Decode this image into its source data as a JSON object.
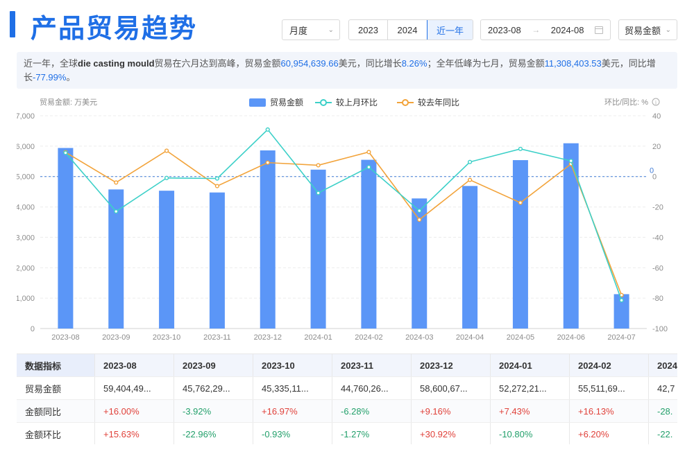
{
  "page": {
    "title": "产品贸易趋势"
  },
  "controls": {
    "period_select": "月度",
    "years": [
      "2023",
      "2024",
      "近一年"
    ],
    "active_year": "近一年",
    "range_start": "2023-08",
    "range_arrow": "→",
    "range_end": "2024-08",
    "metric_select": "贸易金额"
  },
  "summary": {
    "p1": "近一年，全球",
    "product": "die casting mould",
    "p2": "贸易在六月达到高峰，贸易金额",
    "peak_value": "60,954,639.66",
    "p3": "美元，同比增长",
    "peak_growth": "8.26%",
    "p4": "；全年低峰为七月，贸易金额",
    "low_value": "11,308,403.53",
    "p5": "美元，同比增长",
    "low_growth": "-77.99%",
    "p6": "。"
  },
  "chart_data": {
    "type": "bar",
    "categories": [
      "2023-08",
      "2023-09",
      "2023-10",
      "2023-11",
      "2023-12",
      "2024-01",
      "2024-02",
      "2024-03",
      "2024-04",
      "2024-05",
      "2024-06",
      "2024-07"
    ],
    "ylabel": "贸易金额: 万美元",
    "y2label": "环比/同比: %",
    "ylim": [
      0,
      7000
    ],
    "y2lim": [
      -100,
      40
    ],
    "yticks": [
      "0",
      "1,000",
      "2,000",
      "3,000",
      "4,000",
      "5,000",
      "6,000",
      "7,000"
    ],
    "y2ticks": [
      "-100",
      "-80",
      "-60",
      "-40",
      "-20",
      "0",
      "20",
      "40"
    ],
    "zero_label": "0",
    "legend_position": "top-center",
    "series": [
      {
        "name": "贸易金额",
        "type": "bar",
        "color": "#5b96f7",
        "values": [
          5940,
          4576,
          4534,
          4476,
          5860,
          5227,
          5551,
          4280,
          4690,
          5540,
          6095,
          1131
        ]
      },
      {
        "name": "较上月环比",
        "type": "line",
        "color": "#3cd0c8",
        "values": [
          15.63,
          -22.96,
          -0.93,
          -1.27,
          30.92,
          -10.8,
          6.2,
          -22.5,
          9.6,
          18.2,
          10.3,
          -81.4
        ]
      },
      {
        "name": "较去年同比",
        "type": "line",
        "color": "#f2a33a",
        "values": [
          16.0,
          -3.92,
          16.97,
          -6.28,
          9.16,
          7.43,
          16.13,
          -28.4,
          -2.2,
          -17.2,
          8.26,
          -77.99
        ]
      }
    ]
  },
  "table": {
    "headers": [
      "数据指标",
      "2023-08",
      "2023-09",
      "2023-10",
      "2023-11",
      "2023-12",
      "2024-01",
      "2024-02",
      "2024"
    ],
    "rows": [
      {
        "label": "贸易金额",
        "cells": [
          "59,404,49...",
          "45,762,29...",
          "45,335,11...",
          "44,760,26...",
          "58,600,67...",
          "52,272,21...",
          "55,511,69...",
          "42,7"
        ]
      },
      {
        "label": "金额同比",
        "cells": [
          "+16.00%",
          "-3.92%",
          "+16.97%",
          "-6.28%",
          "+9.16%",
          "+7.43%",
          "+16.13%",
          "-28."
        ]
      },
      {
        "label": "金额环比",
        "cells": [
          "+15.63%",
          "-22.96%",
          "-0.93%",
          "-1.27%",
          "+30.92%",
          "-10.80%",
          "+6.20%",
          "-22."
        ]
      }
    ]
  }
}
